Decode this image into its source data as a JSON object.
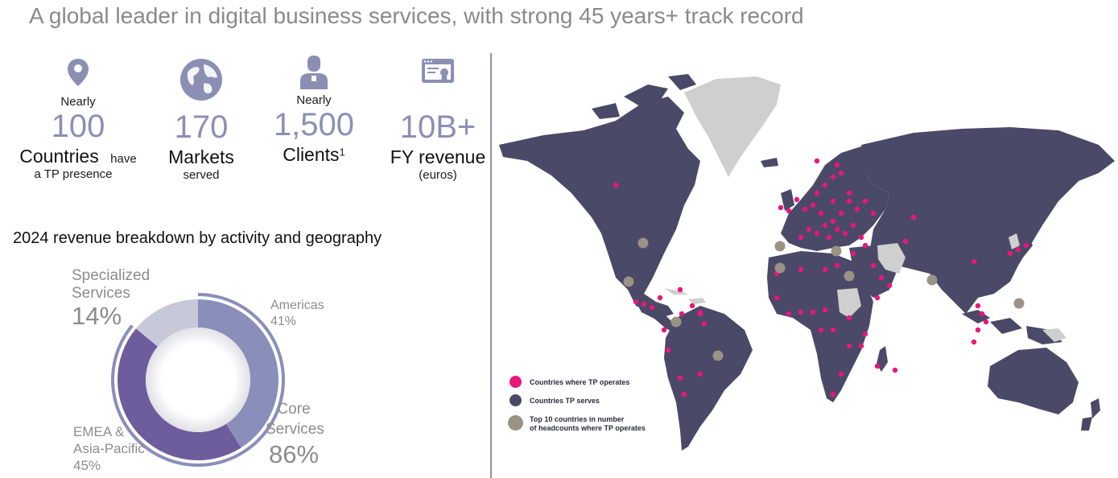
{
  "header": {
    "title": "A global leader in digital business services, with strong 45 years+ track record"
  },
  "stats": [
    {
      "icon": "location-pin-icon",
      "prefix": "Nearly",
      "value": "100",
      "label": "Countries",
      "label_suffix": "have",
      "sub": "a TP presence"
    },
    {
      "icon": "globe-icon",
      "prefix": "",
      "value": "170",
      "label": "Markets",
      "sub": "served"
    },
    {
      "icon": "client-icon",
      "prefix": "Nearly",
      "value": "1,500",
      "label": "Clients",
      "label_sup": "1",
      "sub": ""
    },
    {
      "icon": "certificate-icon",
      "prefix": "",
      "value": "10B+",
      "label": "FY revenue",
      "sub": "(euros)"
    }
  ],
  "breakdown": {
    "title": "2024 revenue breakdown by activity and geography",
    "specialized_label": "Specialized Services",
    "specialized_line1": "Specialized",
    "specialized_line2": "Services",
    "specialized_pct": "14%",
    "core_line1": "Core",
    "core_line2": "Services",
    "core_pct": "86%",
    "americas_label": "Americas",
    "americas_pct": "41%",
    "emea_line1": "EMEA &",
    "emea_line2": "Asia-Pacific",
    "emea_pct": "45%"
  },
  "chart_data": {
    "type": "pie",
    "title": "",
    "inner_ring": [
      {
        "name": "Americas",
        "value": 41,
        "color": "#8a8ebb"
      },
      {
        "name": "EMEA & Asia-Pacific",
        "value": 45,
        "color": "#6e5d9c"
      },
      {
        "name": "Specialized Services",
        "value": 14,
        "color": "#c7c8d8"
      }
    ],
    "outer_ring": [
      {
        "name": "Core Services",
        "value": 86,
        "color": "#8a8ebb"
      },
      {
        "name": "Specialized Services",
        "value": 14,
        "color": "#ffffff"
      }
    ]
  },
  "map": {
    "legend": [
      {
        "label": "Countries where TP operates",
        "color": "#e8177a"
      },
      {
        "label": "Countries TP serves",
        "color": "#4a4968"
      },
      {
        "label": "Top 10 countries in number",
        "label2": "of headcounts where TP operates",
        "color": "#9a9385"
      }
    ],
    "colors": {
      "land": "#4a4968",
      "unserved": "#cfcfcf",
      "operates": "#e8177a",
      "top10": "#9a9385"
    }
  }
}
